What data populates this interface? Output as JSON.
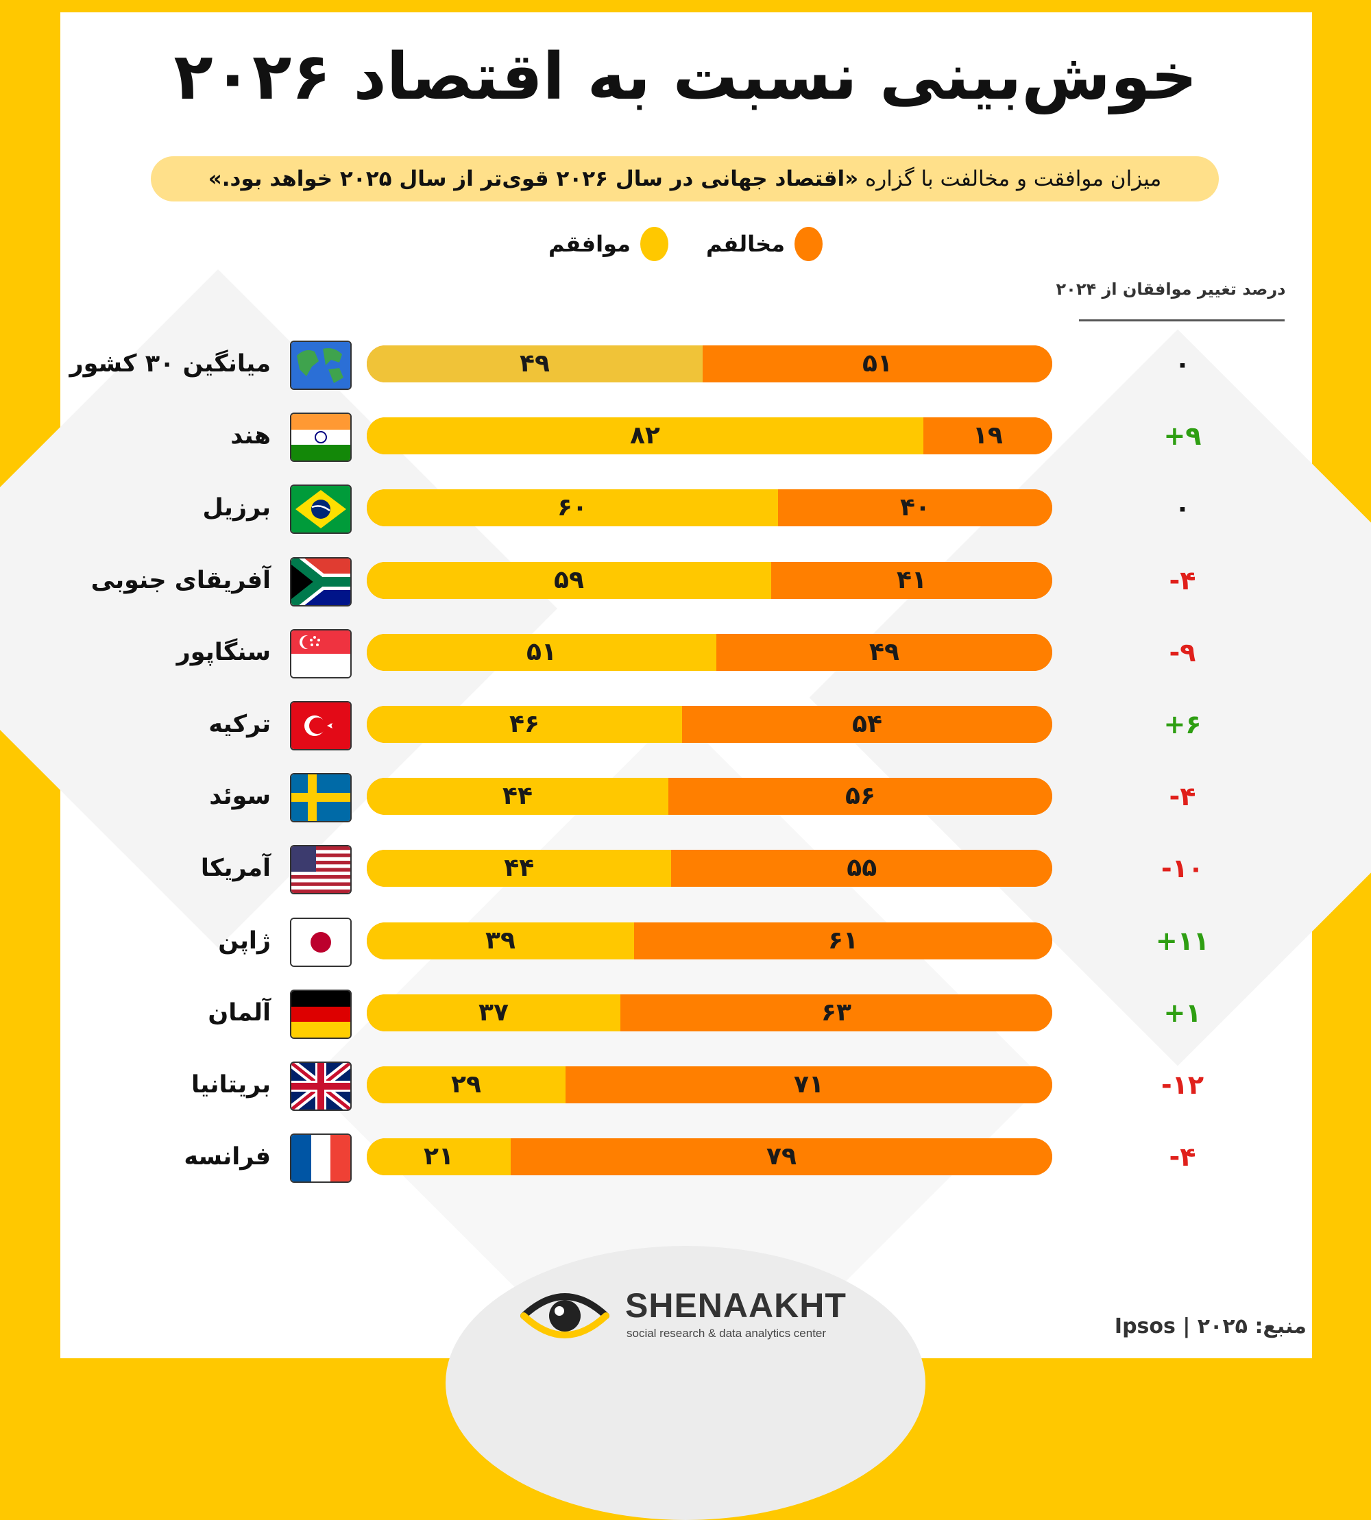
{
  "header": {
    "title": "خوش‌بینی نسبت به اقتصاد ۲۰۲۶",
    "subtitle_prefix": "میزان موافقت و مخالفت با گزاره ",
    "subtitle_bold": "«اقتصاد جهانی در سال ۲۰۲۶ قوی‌تر از سال ۲۰۲۵ خواهد بود.»"
  },
  "legend": {
    "disagree": "مخالفم",
    "agree": "موافقم"
  },
  "change_header": "درصد تغییر موافقان از ۲۰۲۴",
  "colors": {
    "agree": "#FFC800",
    "agree_average": "#F0C338",
    "disagree": "#FF7F00",
    "positive_change": "#2E9E12",
    "negative_change": "#E0201B",
    "neutral_change": "#111111",
    "frame": "#FFC800"
  },
  "chart_data": {
    "type": "bar",
    "orientation": "horizontal-stacked-100",
    "series": [
      {
        "name": "موافقم",
        "values": [
          49,
          82,
          60,
          59,
          51,
          46,
          44,
          44,
          39,
          37,
          29,
          21
        ]
      },
      {
        "name": "مخالفم",
        "values": [
          51,
          19,
          40,
          41,
          49,
          54,
          56,
          55,
          61,
          63,
          71,
          79
        ]
      }
    ],
    "rows": [
      {
        "country": "میانگین ۳۰ کشور",
        "flag": "globe-icon",
        "agree": 49,
        "disagree": 51,
        "agree_label": "۴۹",
        "disagree_label": "۵۱",
        "change": "۰",
        "change_sign": "neutral"
      },
      {
        "country": "هند",
        "flag": "india-flag-icon",
        "agree": 82,
        "disagree": 19,
        "agree_label": "۸۲",
        "disagree_label": "۱۹",
        "change": "+۹",
        "change_sign": "positive"
      },
      {
        "country": "برزیل",
        "flag": "brazil-flag-icon",
        "agree": 60,
        "disagree": 40,
        "agree_label": "۶۰",
        "disagree_label": "۴۰",
        "change": "۰",
        "change_sign": "neutral"
      },
      {
        "country": "آفریقای جنوبی",
        "flag": "south-africa-flag-icon",
        "agree": 59,
        "disagree": 41,
        "agree_label": "۵۹",
        "disagree_label": "۴۱",
        "change": "-۴",
        "change_sign": "negative"
      },
      {
        "country": "سنگاپور",
        "flag": "singapore-flag-icon",
        "agree": 51,
        "disagree": 49,
        "agree_label": "۵۱",
        "disagree_label": "۴۹",
        "change": "-۹",
        "change_sign": "negative"
      },
      {
        "country": "ترکیه",
        "flag": "turkey-flag-icon",
        "agree": 46,
        "disagree": 54,
        "agree_label": "۴۶",
        "disagree_label": "۵۴",
        "change": "+۶",
        "change_sign": "positive"
      },
      {
        "country": "سوئد",
        "flag": "sweden-flag-icon",
        "agree": 44,
        "disagree": 56,
        "agree_label": "۴۴",
        "disagree_label": "۵۶",
        "change": "-۴",
        "change_sign": "negative"
      },
      {
        "country": "آمریکا",
        "flag": "usa-flag-icon",
        "agree": 44,
        "disagree": 55,
        "agree_label": "۴۴",
        "disagree_label": "۵۵",
        "change": "-۱۰",
        "change_sign": "negative"
      },
      {
        "country": "ژاپن",
        "flag": "japan-flag-icon",
        "agree": 39,
        "disagree": 61,
        "agree_label": "۳۹",
        "disagree_label": "۶۱",
        "change": "+۱۱",
        "change_sign": "positive"
      },
      {
        "country": "آلمان",
        "flag": "germany-flag-icon",
        "agree": 37,
        "disagree": 63,
        "agree_label": "۳۷",
        "disagree_label": "۶۳",
        "change": "+۱",
        "change_sign": "positive"
      },
      {
        "country": "بریتانیا",
        "flag": "uk-flag-icon",
        "agree": 29,
        "disagree": 71,
        "agree_label": "۲۹",
        "disagree_label": "۷۱",
        "change": "-۱۲",
        "change_sign": "negative"
      },
      {
        "country": "فرانسه",
        "flag": "france-flag-icon",
        "agree": 21,
        "disagree": 79,
        "agree_label": "۲۱",
        "disagree_label": "۷۹",
        "change": "-۴",
        "change_sign": "negative"
      }
    ]
  },
  "footer": {
    "logo_icon": "eye-logo-icon",
    "brand": "SHENAAKHT",
    "tagline": "social research & data analytics center",
    "source_label": "منبع:",
    "source_value": "Ipsos | ۲۰۲۵"
  }
}
